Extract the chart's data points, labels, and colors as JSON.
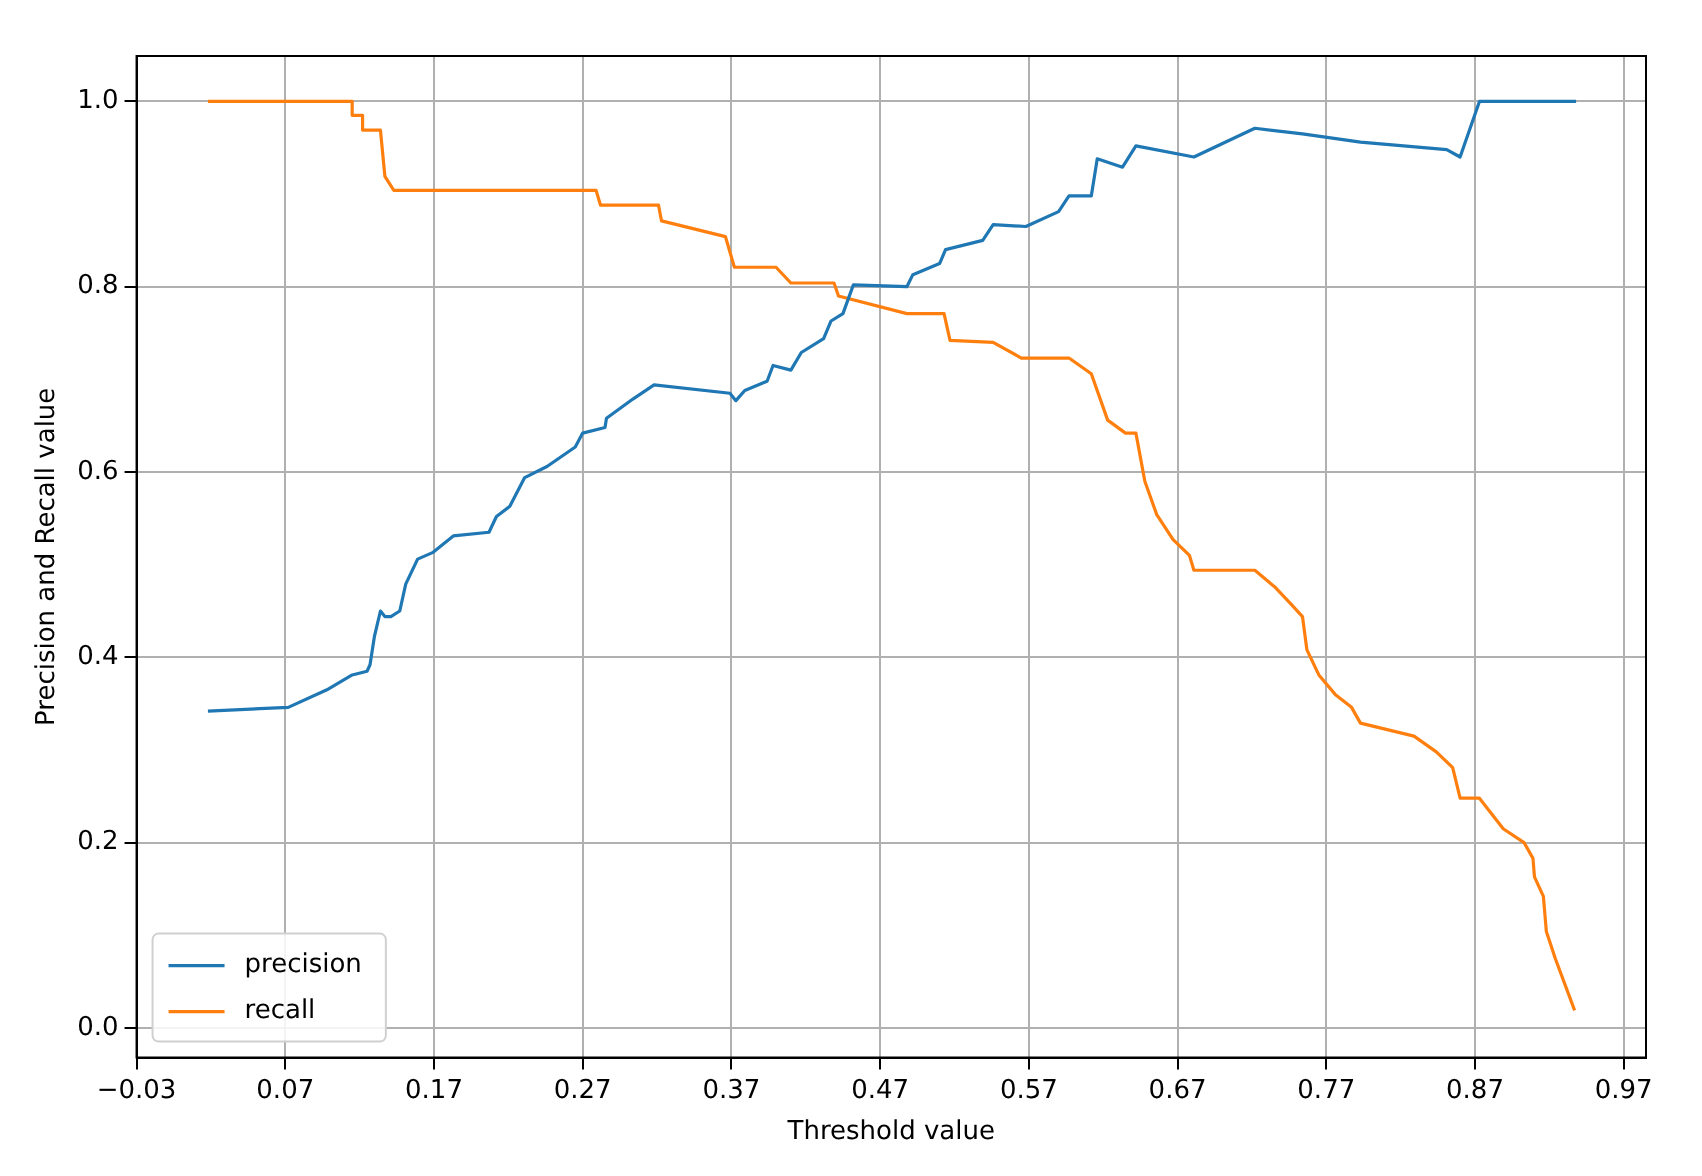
{
  "chart_data": {
    "type": "line",
    "xlabel": "Threshold value",
    "ylabel": "Precision and Recall value",
    "xlim": [
      -0.03,
      0.985
    ],
    "ylim": [
      -0.032,
      1.049
    ],
    "xticks": [
      {
        "value": -0.03,
        "label": "−0.03"
      },
      0.07,
      0.17,
      0.27,
      0.37,
      0.47,
      0.57,
      0.67,
      0.77,
      0.87,
      0.97
    ],
    "yticks": [
      {
        "value": 0,
        "label": "0.0"
      },
      0.2,
      0.4,
      0.6,
      0.8,
      {
        "value": 1,
        "label": "1.0"
      }
    ],
    "grid": true,
    "legend": "bottom left",
    "series": [
      {
        "name": "precision",
        "color": "#1f77b4",
        "x": [
          0.018,
          0.072,
          0.098,
          0.115,
          0.125,
          0.127,
          0.13,
          0.134,
          0.137,
          0.141,
          0.147,
          0.151,
          0.159,
          0.169,
          0.183,
          0.207,
          0.212,
          0.221,
          0.231,
          0.246,
          0.265,
          0.27,
          0.285,
          0.286,
          0.304,
          0.318,
          0.369,
          0.373,
          0.379,
          0.394,
          0.398,
          0.41,
          0.417,
          0.432,
          0.437,
          0.445,
          0.452,
          0.488,
          0.492,
          0.51,
          0.514,
          0.539,
          0.546,
          0.568,
          0.59,
          0.597,
          0.612,
          0.616,
          0.633,
          0.642,
          0.681,
          0.722,
          0.754,
          0.793,
          0.851,
          0.86,
          0.873,
          0.938
        ],
        "values": [
          0.342,
          0.346,
          0.365,
          0.381,
          0.385,
          0.392,
          0.423,
          0.45,
          0.444,
          0.444,
          0.45,
          0.479,
          0.506,
          0.513,
          0.531,
          0.535,
          0.552,
          0.563,
          0.594,
          0.606,
          0.627,
          0.642,
          0.648,
          0.658,
          0.679,
          0.694,
          0.685,
          0.677,
          0.688,
          0.698,
          0.715,
          0.71,
          0.729,
          0.744,
          0.763,
          0.771,
          0.802,
          0.8,
          0.813,
          0.825,
          0.84,
          0.85,
          0.867,
          0.865,
          0.881,
          0.898,
          0.898,
          0.938,
          0.929,
          0.952,
          0.94,
          0.971,
          0.965,
          0.956,
          0.948,
          0.94,
          1.0,
          1.0
        ]
      },
      {
        "name": "recall",
        "color": "#ff7f0e",
        "x": [
          0.018,
          0.115,
          0.115,
          0.122,
          0.122,
          0.134,
          0.137,
          0.143,
          0.279,
          0.282,
          0.321,
          0.323,
          0.366,
          0.372,
          0.4,
          0.41,
          0.439,
          0.442,
          0.488,
          0.513,
          0.517,
          0.546,
          0.565,
          0.597,
          0.612,
          0.623,
          0.635,
          0.642,
          0.648,
          0.656,
          0.667,
          0.678,
          0.681,
          0.722,
          0.736,
          0.746,
          0.754,
          0.757,
          0.765,
          0.776,
          0.787,
          0.793,
          0.829,
          0.844,
          0.855,
          0.86,
          0.873,
          0.889,
          0.903,
          0.909,
          0.91,
          0.916,
          0.918,
          0.924,
          0.937
        ],
        "values": [
          1.0,
          1.0,
          0.985,
          0.985,
          0.969,
          0.969,
          0.919,
          0.904,
          0.904,
          0.888,
          0.888,
          0.871,
          0.854,
          0.821,
          0.821,
          0.804,
          0.804,
          0.79,
          0.771,
          0.771,
          0.742,
          0.74,
          0.723,
          0.723,
          0.706,
          0.656,
          0.642,
          0.642,
          0.59,
          0.554,
          0.527,
          0.51,
          0.494,
          0.494,
          0.475,
          0.458,
          0.444,
          0.408,
          0.381,
          0.36,
          0.346,
          0.329,
          0.315,
          0.298,
          0.281,
          0.248,
          0.248,
          0.215,
          0.2,
          0.183,
          0.163,
          0.142,
          0.104,
          0.075,
          0.019
        ]
      }
    ]
  }
}
